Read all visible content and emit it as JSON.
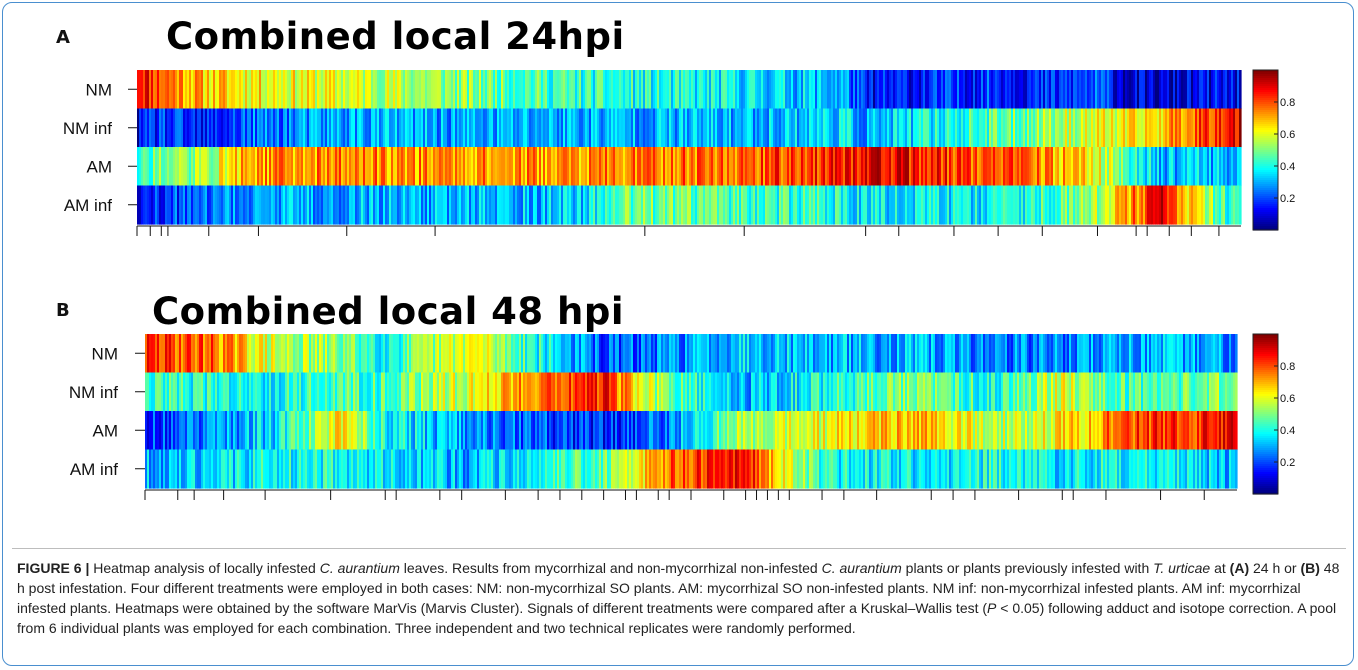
{
  "chart_data": [
    {
      "type": "heatmap",
      "panel": "A",
      "title": "Combined local 24hpi",
      "rows": [
        "NM",
        "NM inf",
        "AM",
        "AM inf"
      ],
      "colorbar": {
        "min": 0,
        "max": 1,
        "ticks": [
          "0.2",
          "0.4",
          "0.6",
          "0.8"
        ],
        "colormap": "jet"
      },
      "column_profile_knots": [
        {
          "pos": 0.0,
          "values": [
            0.92,
            0.08,
            0.45,
            0.15
          ]
        },
        {
          "pos": 0.02,
          "values": [
            0.8,
            0.18,
            0.5,
            0.18
          ]
        },
        {
          "pos": 0.06,
          "values": [
            0.68,
            0.12,
            0.52,
            0.2
          ]
        },
        {
          "pos": 0.1,
          "values": [
            0.64,
            0.22,
            0.72,
            0.28
          ]
        },
        {
          "pos": 0.2,
          "values": [
            0.58,
            0.3,
            0.74,
            0.3
          ]
        },
        {
          "pos": 0.3,
          "values": [
            0.5,
            0.28,
            0.73,
            0.3
          ]
        },
        {
          "pos": 0.4,
          "values": [
            0.42,
            0.3,
            0.72,
            0.32
          ]
        },
        {
          "pos": 0.44,
          "values": [
            0.4,
            0.3,
            0.74,
            0.48
          ]
        },
        {
          "pos": 0.55,
          "values": [
            0.36,
            0.3,
            0.78,
            0.45
          ]
        },
        {
          "pos": 0.64,
          "values": [
            0.3,
            0.35,
            0.85,
            0.4
          ]
        },
        {
          "pos": 0.66,
          "values": [
            0.12,
            0.28,
            0.9,
            0.36
          ]
        },
        {
          "pos": 0.72,
          "values": [
            0.15,
            0.38,
            0.84,
            0.35
          ]
        },
        {
          "pos": 0.78,
          "values": [
            0.18,
            0.45,
            0.78,
            0.38
          ]
        },
        {
          "pos": 0.82,
          "values": [
            0.14,
            0.52,
            0.74,
            0.42
          ]
        },
        {
          "pos": 0.87,
          "values": [
            0.2,
            0.6,
            0.62,
            0.55
          ]
        },
        {
          "pos": 0.9,
          "values": [
            0.08,
            0.6,
            0.45,
            0.72
          ]
        },
        {
          "pos": 0.93,
          "values": [
            0.06,
            0.68,
            0.3,
            0.88
          ]
        },
        {
          "pos": 0.96,
          "values": [
            0.1,
            0.8,
            0.32,
            0.6
          ]
        },
        {
          "pos": 1.0,
          "values": [
            0.12,
            0.9,
            0.3,
            0.35
          ]
        }
      ],
      "dendrogram_ticks": [
        0.0,
        0.012,
        0.022,
        0.028,
        0.065,
        0.11,
        0.19,
        0.27,
        0.46,
        0.55,
        0.66,
        0.69,
        0.74,
        0.78,
        0.82,
        0.87,
        0.905,
        0.915,
        0.935,
        0.955,
        0.98
      ]
    },
    {
      "type": "heatmap",
      "panel": "B",
      "title": "Combined local 48 hpi",
      "rows": [
        "NM",
        "NM inf",
        "AM",
        "AM inf"
      ],
      "colorbar": {
        "min": 0,
        "max": 1,
        "ticks": [
          "0.2",
          "0.4",
          "0.6",
          "0.8"
        ],
        "colormap": "jet"
      },
      "column_profile_knots": [
        {
          "pos": 0.0,
          "values": [
            0.82,
            0.45,
            0.18,
            0.3
          ]
        },
        {
          "pos": 0.06,
          "values": [
            0.78,
            0.4,
            0.25,
            0.32
          ]
        },
        {
          "pos": 0.12,
          "values": [
            0.55,
            0.4,
            0.35,
            0.4
          ]
        },
        {
          "pos": 0.18,
          "values": [
            0.5,
            0.45,
            0.65,
            0.4
          ]
        },
        {
          "pos": 0.22,
          "values": [
            0.4,
            0.45,
            0.4,
            0.35
          ]
        },
        {
          "pos": 0.3,
          "values": [
            0.62,
            0.6,
            0.25,
            0.3
          ]
        },
        {
          "pos": 0.36,
          "values": [
            0.4,
            0.78,
            0.2,
            0.4
          ]
        },
        {
          "pos": 0.42,
          "values": [
            0.2,
            0.85,
            0.15,
            0.48
          ]
        },
        {
          "pos": 0.48,
          "values": [
            0.25,
            0.45,
            0.25,
            0.78
          ]
        },
        {
          "pos": 0.55,
          "values": [
            0.35,
            0.3,
            0.55,
            0.85
          ]
        },
        {
          "pos": 0.62,
          "values": [
            0.3,
            0.4,
            0.6,
            0.4
          ]
        },
        {
          "pos": 0.7,
          "values": [
            0.3,
            0.5,
            0.7,
            0.35
          ]
        },
        {
          "pos": 0.78,
          "values": [
            0.25,
            0.4,
            0.55,
            0.4
          ]
        },
        {
          "pos": 0.84,
          "values": [
            0.25,
            0.6,
            0.62,
            0.35
          ]
        },
        {
          "pos": 0.9,
          "values": [
            0.3,
            0.45,
            0.8,
            0.4
          ]
        },
        {
          "pos": 1.0,
          "values": [
            0.28,
            0.5,
            0.86,
            0.3
          ]
        }
      ],
      "dendrogram_ticks": [
        0.0,
        0.03,
        0.045,
        0.072,
        0.11,
        0.17,
        0.22,
        0.23,
        0.27,
        0.29,
        0.33,
        0.36,
        0.38,
        0.4,
        0.42,
        0.44,
        0.45,
        0.47,
        0.48,
        0.5,
        0.53,
        0.55,
        0.56,
        0.57,
        0.58,
        0.59,
        0.62,
        0.64,
        0.67,
        0.72,
        0.74,
        0.76,
        0.8,
        0.84,
        0.85,
        0.88,
        0.93,
        0.97
      ]
    }
  ],
  "caption": {
    "label": "FIGURE 6 |",
    "s1": " Heatmap analysis of locally infested ",
    "species1": "C. aurantium",
    "s2": " leaves. Results from mycorrhizal and non-mycorrhizal non-infested ",
    "species2": "C. aurantium",
    "s3": " plants or plants previously infested with ",
    "species3": "T. urticae",
    "s4": " at ",
    "refA": "(A)",
    "s5": " 24 h or ",
    "refB": "(B)",
    "s6": " 48 h post infestation. Four different treatments were employed in both cases: NM: non-mycorrhizal SO plants. AM: mycorrhizal SO non-infested plants. NM inf: non-mycorrhizal infested plants. AM inf: mycorrhizal infested plants. Heatmaps were obtained by the software MarVis (Marvis Cluster). Signals of different treatments were compared after a Kruskal–Wallis test (",
    "pvar": "P",
    "s7": " < 0.05) following adduct and isotope correction. A pool from 6 individual plants was employed for each combination. Three independent and two technical replicates were randomly performed."
  }
}
